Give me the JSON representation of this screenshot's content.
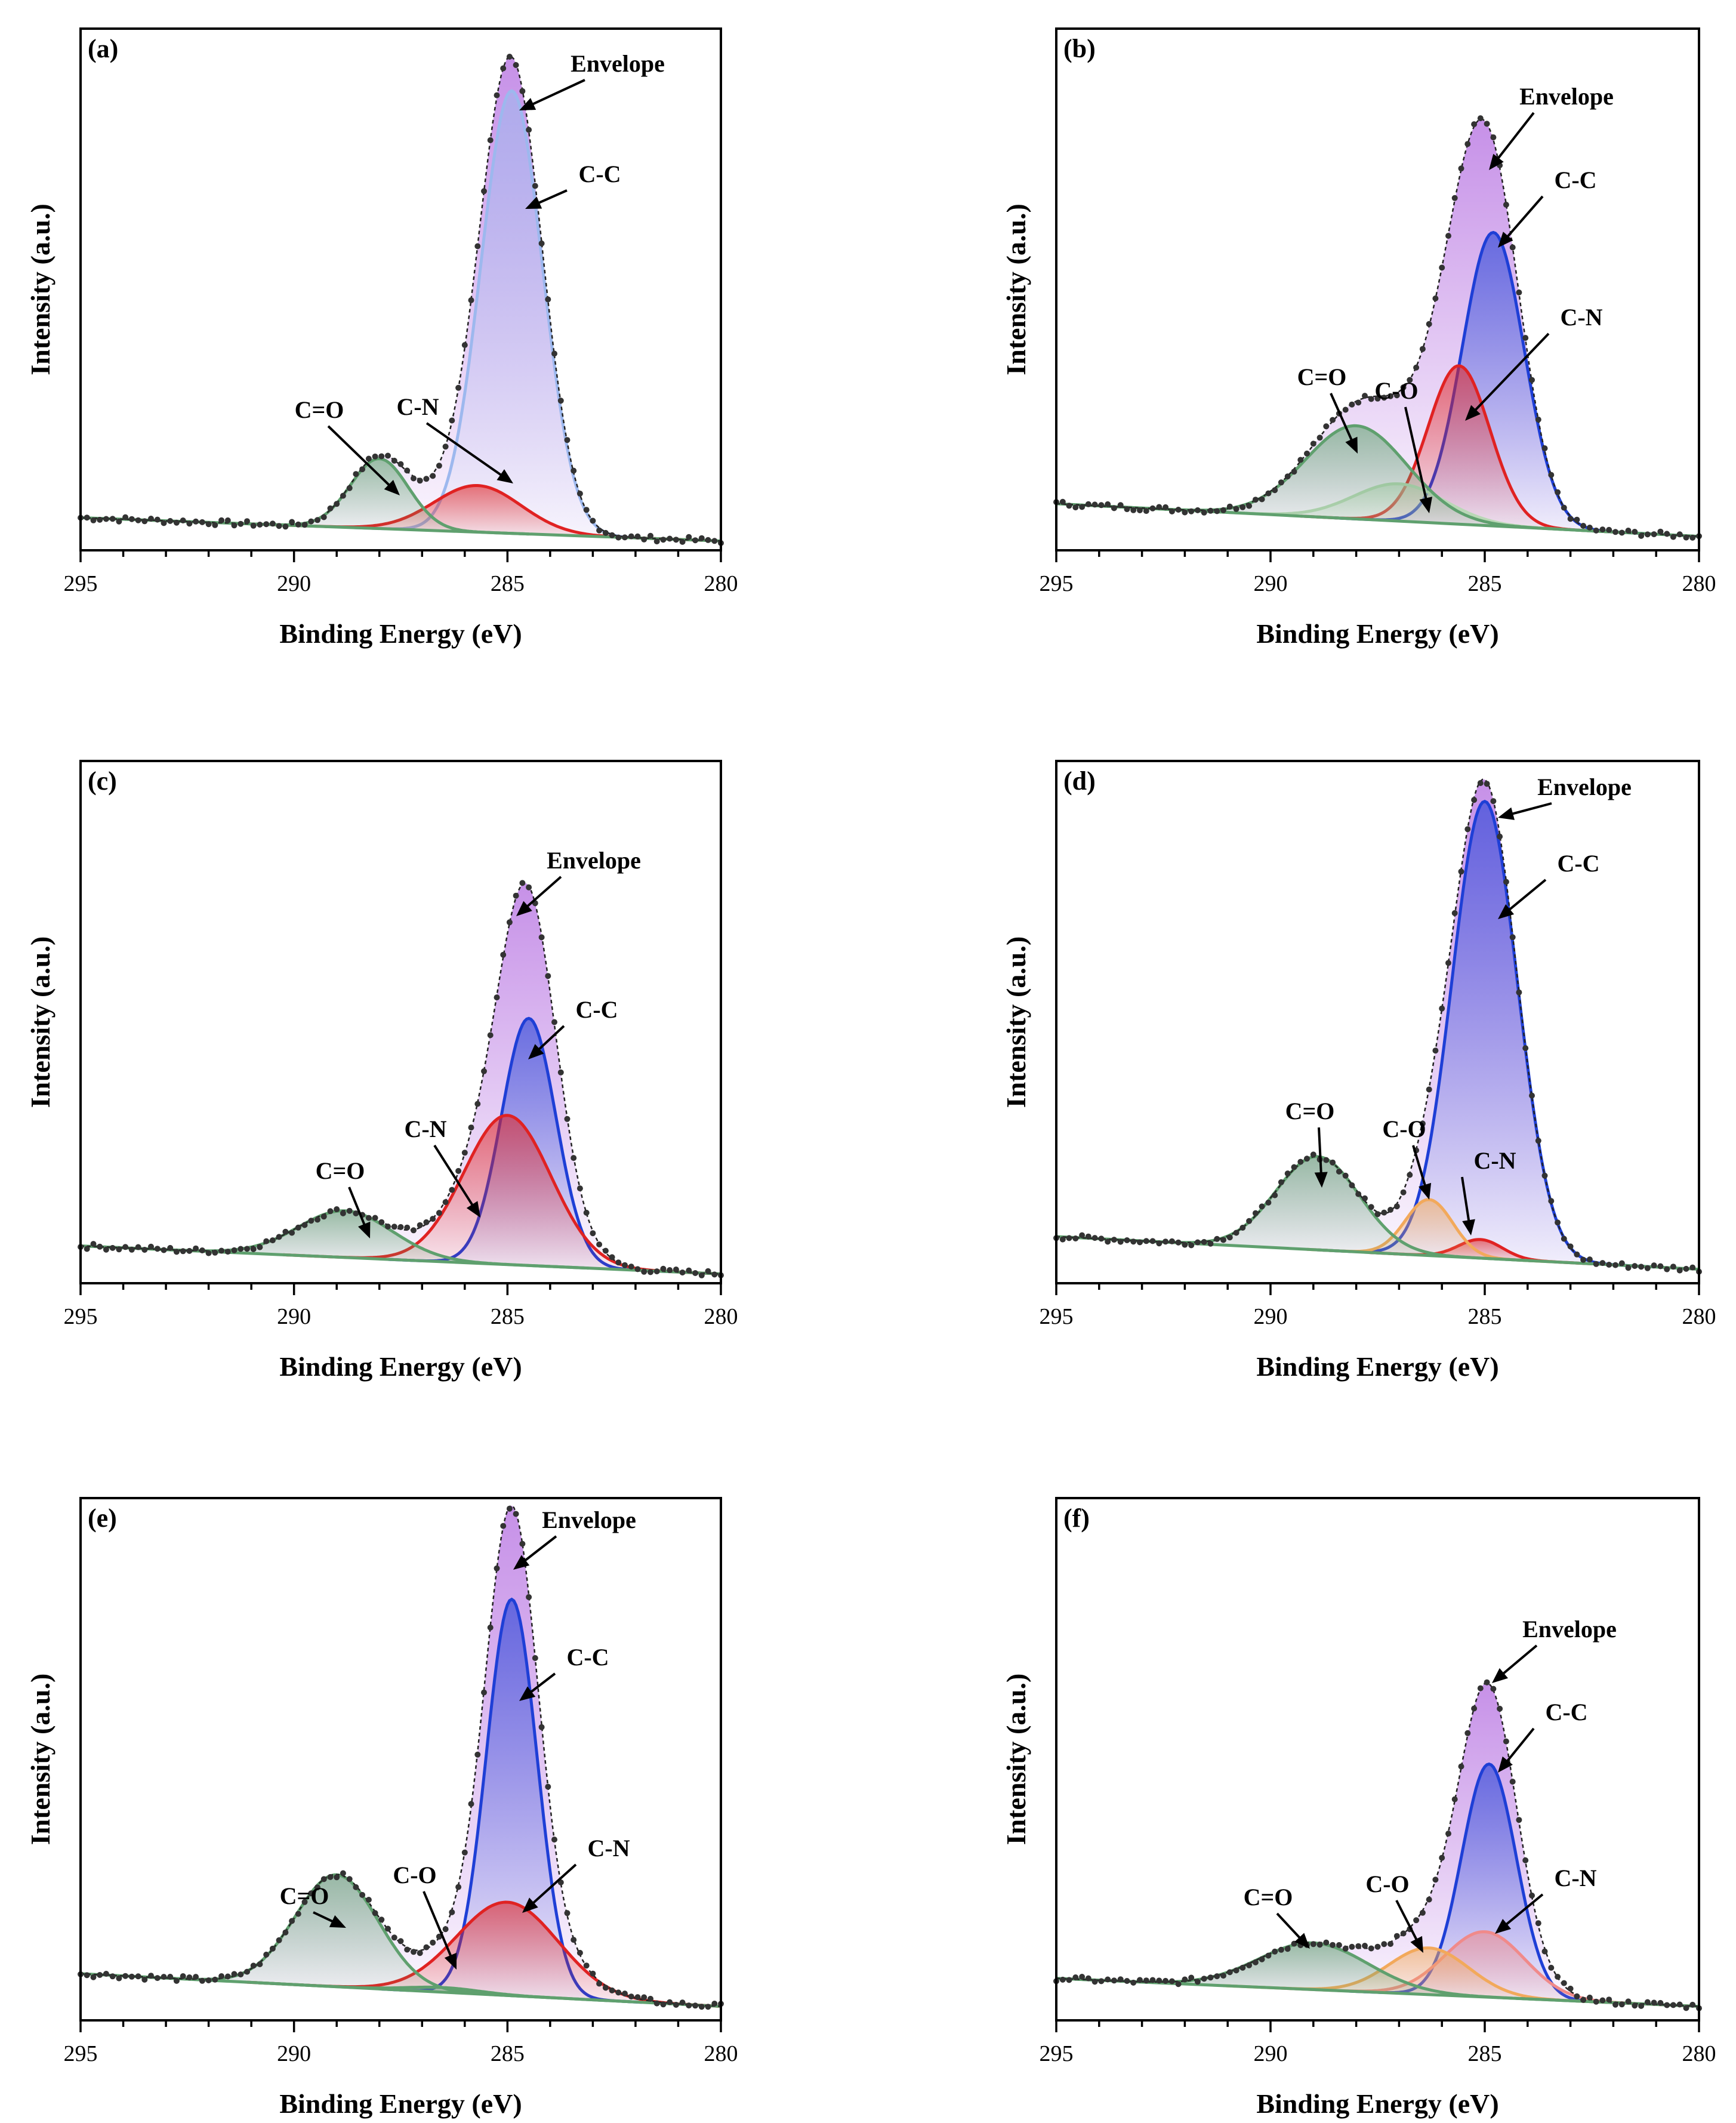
{
  "figure": {
    "type": "XPS C 1s high-resolution spectra",
    "colors": {
      "envelope": "#b36be0",
      "cc": "#1e3fd6",
      "cn": "#e02222",
      "co": "#f2a95b",
      "c_o_double": "#5fa06e",
      "data_dots": "#333333",
      "background": "#5fa06e"
    }
  },
  "chart_data": [
    {
      "type": "line",
      "panel": "(a)",
      "xlabel": "Binding Energy (eV)",
      "ylabel": "Intensity (a.u.)",
      "xlim": [
        295,
        280
      ],
      "xticks": [
        "295",
        "290",
        "285",
        "280"
      ],
      "ylim": [
        0,
        1.12
      ],
      "baseline": {
        "start": 0.07,
        "end": 0.02
      },
      "peaks": [
        {
          "name": "C-C",
          "center": 284.9,
          "height": 0.95,
          "fwhm": 1.7,
          "color": "#9db8ee"
        },
        {
          "name": "C-N",
          "center": 285.7,
          "height": 0.1,
          "fwhm": 2.4,
          "color": "#e02222"
        },
        {
          "name": "C=O",
          "center": 288.0,
          "height": 0.15,
          "fwhm": 1.6,
          "color": "#5fa06e"
        }
      ],
      "annotations": [
        "Envelope",
        "C-C",
        "C-N",
        "C=O"
      ]
    },
    {
      "type": "line",
      "panel": "(b)",
      "xlabel": "Binding Energy (eV)",
      "ylabel": "Intensity (a.u.)",
      "xlim": [
        295,
        280
      ],
      "xticks": [
        "295",
        "290",
        "285",
        "280"
      ],
      "ylim": [
        0,
        1.12
      ],
      "baseline": {
        "start": 0.1,
        "end": 0.03
      },
      "peaks": [
        {
          "name": "C-C",
          "center": 284.8,
          "height": 0.63,
          "fwhm": 1.7,
          "color": "#1e3fd6"
        },
        {
          "name": "C-N",
          "center": 285.6,
          "height": 0.34,
          "fwhm": 1.7,
          "color": "#e02222"
        },
        {
          "name": "C-O",
          "center": 287.0,
          "height": 0.08,
          "fwhm": 2.5,
          "color": "#b9d8b6"
        },
        {
          "name": "C=O",
          "center": 288.0,
          "height": 0.2,
          "fwhm": 2.8,
          "color": "#5fa06e"
        }
      ],
      "annotations": [
        "Envelope",
        "C-C",
        "C-N",
        "C=O",
        "C-O"
      ]
    },
    {
      "type": "line",
      "panel": "(c)",
      "xlabel": "Binding Energy (eV)",
      "ylabel": "Intensity (a.u.)",
      "xlim": [
        295,
        280
      ],
      "xticks": [
        "295",
        "290",
        "285",
        "280"
      ],
      "ylim": [
        0,
        1.12
      ],
      "baseline": {
        "start": 0.08,
        "end": 0.02
      },
      "peaks": [
        {
          "name": "C-C",
          "center": 284.5,
          "height": 0.53,
          "fwhm": 1.5,
          "color": "#1e3fd6"
        },
        {
          "name": "C-N",
          "center": 285.0,
          "height": 0.32,
          "fwhm": 2.4,
          "color": "#e02222"
        },
        {
          "name": "C=O",
          "center": 288.8,
          "height": 0.1,
          "fwhm": 2.6,
          "color": "#5fa06e"
        }
      ],
      "annotations": [
        "Envelope",
        "C-C",
        "C-N",
        "C=O"
      ]
    },
    {
      "type": "line",
      "panel": "(d)",
      "xlabel": "Binding Energy (eV)",
      "ylabel": "Intensity (a.u.)",
      "xlim": [
        295,
        280
      ],
      "xticks": [
        "295",
        "290",
        "285",
        "280"
      ],
      "ylim": [
        0,
        1.12
      ],
      "baseline": {
        "start": 0.1,
        "end": 0.03
      },
      "peaks": [
        {
          "name": "C-C",
          "center": 285.0,
          "height": 0.98,
          "fwhm": 1.8,
          "color": "#1e3fd6"
        },
        {
          "name": "C-N",
          "center": 285.1,
          "height": 0.04,
          "fwhm": 1.2,
          "color": "#e02222"
        },
        {
          "name": "C-O",
          "center": 286.3,
          "height": 0.12,
          "fwhm": 1.3,
          "color": "#f2a95b"
        },
        {
          "name": "C=O",
          "center": 288.9,
          "height": 0.2,
          "fwhm": 2.3,
          "color": "#5fa06e"
        }
      ],
      "annotations": [
        "Envelope",
        "C-C",
        "C=O",
        "C-O",
        "C-N"
      ]
    },
    {
      "type": "line",
      "panel": "(e)",
      "xlabel": "Binding Energy (eV)",
      "ylabel": "Intensity (a.u.)",
      "xlim": [
        295,
        280
      ],
      "xticks": [
        "295",
        "290",
        "285",
        "280"
      ],
      "ylim": [
        0,
        1.12
      ],
      "baseline": {
        "start": 0.1,
        "end": 0.03
      },
      "peaks": [
        {
          "name": "C-C",
          "center": 284.9,
          "height": 0.85,
          "fwhm": 1.4,
          "color": "#1e3fd6"
        },
        {
          "name": "C-N",
          "center": 285.0,
          "height": 0.2,
          "fwhm": 2.8,
          "color": "#e02222"
        },
        {
          "name": "C-O",
          "center": 286.5,
          "height": 0.01,
          "fwhm": 2.0,
          "color": "#5fa06e"
        },
        {
          "name": "C=O",
          "center": 289.0,
          "height": 0.24,
          "fwhm": 2.3,
          "color": "#5fa06e"
        }
      ],
      "annotations": [
        "Envelope",
        "C-C",
        "C-N",
        "C=O",
        "C-O"
      ]
    },
    {
      "type": "line",
      "panel": "(f)",
      "xlabel": "Binding Energy (eV)",
      "ylabel": "Intensity (a.u.)",
      "xlim": [
        295,
        280
      ],
      "xticks": [
        "295",
        "290",
        "285",
        "280"
      ],
      "ylim": [
        0,
        1.12
      ],
      "baseline": {
        "start": 0.09,
        "end": 0.03
      },
      "peaks": [
        {
          "name": "C-C",
          "center": 284.9,
          "height": 0.5,
          "fwhm": 1.5,
          "color": "#1e3fd6"
        },
        {
          "name": "C-N",
          "center": 285.0,
          "height": 0.14,
          "fwhm": 2.2,
          "color": "#f08a8a"
        },
        {
          "name": "C-O",
          "center": 286.3,
          "height": 0.1,
          "fwhm": 2.2,
          "color": "#f2a95b"
        },
        {
          "name": "C=O",
          "center": 289.0,
          "height": 0.1,
          "fwhm": 3.0,
          "color": "#5fa06e"
        }
      ],
      "annotations": [
        "Envelope",
        "C-C",
        "C-N",
        "C=O",
        "C-O"
      ]
    }
  ]
}
